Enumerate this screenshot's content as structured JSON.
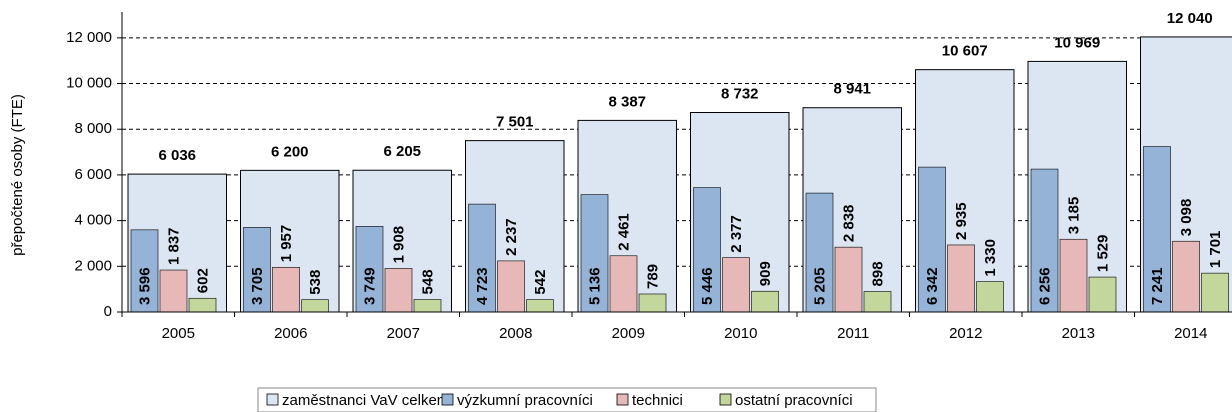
{
  "chart_data": {
    "type": "bar",
    "y_label": "přepočtené osoby (FTE)",
    "categories": [
      "2005",
      "2006",
      "2007",
      "2008",
      "2009",
      "2010",
      "2011",
      "2012",
      "2013",
      "2014"
    ],
    "ylim": [
      0,
      13000
    ],
    "yticks": [
      0,
      {
        "value": 2000,
        "label": "2 000"
      },
      {
        "value": 4000,
        "label": "4 000"
      },
      {
        "value": 6000,
        "label": "6 000"
      },
      {
        "value": 8000,
        "label": "8 000"
      },
      {
        "value": 10000,
        "label": "10 000"
      },
      {
        "value": 12000,
        "label": "12 000"
      }
    ],
    "grid": true,
    "legend": "bottom",
    "series": [
      {
        "name": "zaměstnanci VaV celkem",
        "color": "#dce6f2",
        "values": [
          6036,
          6200,
          6205,
          7501,
          8387,
          8732,
          8941,
          10607,
          10969,
          12040
        ],
        "value_labels": [
          "6 036",
          "6 200",
          "6 205",
          "7 501",
          "8 387",
          "8 732",
          "8 941",
          "10 607",
          "10 969",
          "12 040"
        ]
      },
      {
        "name": "výzkumní pracovníci",
        "color": "#95b3d7",
        "values": [
          3596,
          3705,
          3749,
          4723,
          5136,
          5446,
          5205,
          6342,
          6256,
          7241
        ],
        "value_labels": [
          "3 596",
          "3 705",
          "3 749",
          "4 723",
          "5 136",
          "5 446",
          "5 205",
          "6 342",
          "6 256",
          "7 241"
        ]
      },
      {
        "name": "technici",
        "color": "#e6b9b8",
        "values": [
          1837,
          1957,
          1908,
          2237,
          2461,
          2377,
          2838,
          2935,
          3185,
          3098
        ],
        "value_labels": [
          "1 837",
          "1 957",
          "1 908",
          "2 237",
          "2 461",
          "2 377",
          "2 838",
          "2 935",
          "3 185",
          "3 098"
        ]
      },
      {
        "name": "ostatní pracovníci",
        "color": "#c3d69b",
        "values": [
          602,
          538,
          548,
          542,
          789,
          909,
          898,
          1330,
          1529,
          1701
        ],
        "value_labels": [
          "602",
          "538",
          "548",
          "542",
          "789",
          "909",
          "898",
          "1 330",
          "1 529",
          "1 701"
        ]
      }
    ]
  }
}
